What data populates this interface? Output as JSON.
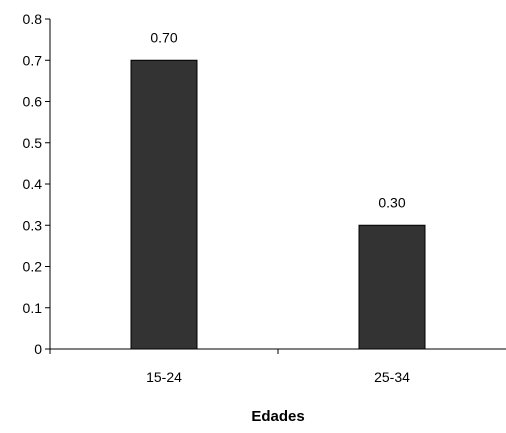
{
  "chart_data": {
    "type": "bar",
    "categories": [
      "15-24",
      "25-34"
    ],
    "values": [
      0.7,
      0.3
    ],
    "data_labels": [
      "0.70",
      "0.30"
    ],
    "title": "",
    "xlabel": "Edades",
    "ylabel": "",
    "ylim": [
      0,
      0.8
    ],
    "yticks": [
      0,
      0.1,
      0.2,
      0.3,
      0.4,
      0.5,
      0.6,
      0.7,
      0.8
    ],
    "ytick_labels": [
      "0",
      "0.1",
      "0.2",
      "0.3",
      "0.4",
      "0.5",
      "0.6",
      "0.7",
      "0.8"
    ],
    "grid": false,
    "legend": "none",
    "bar_color": "#333333"
  }
}
